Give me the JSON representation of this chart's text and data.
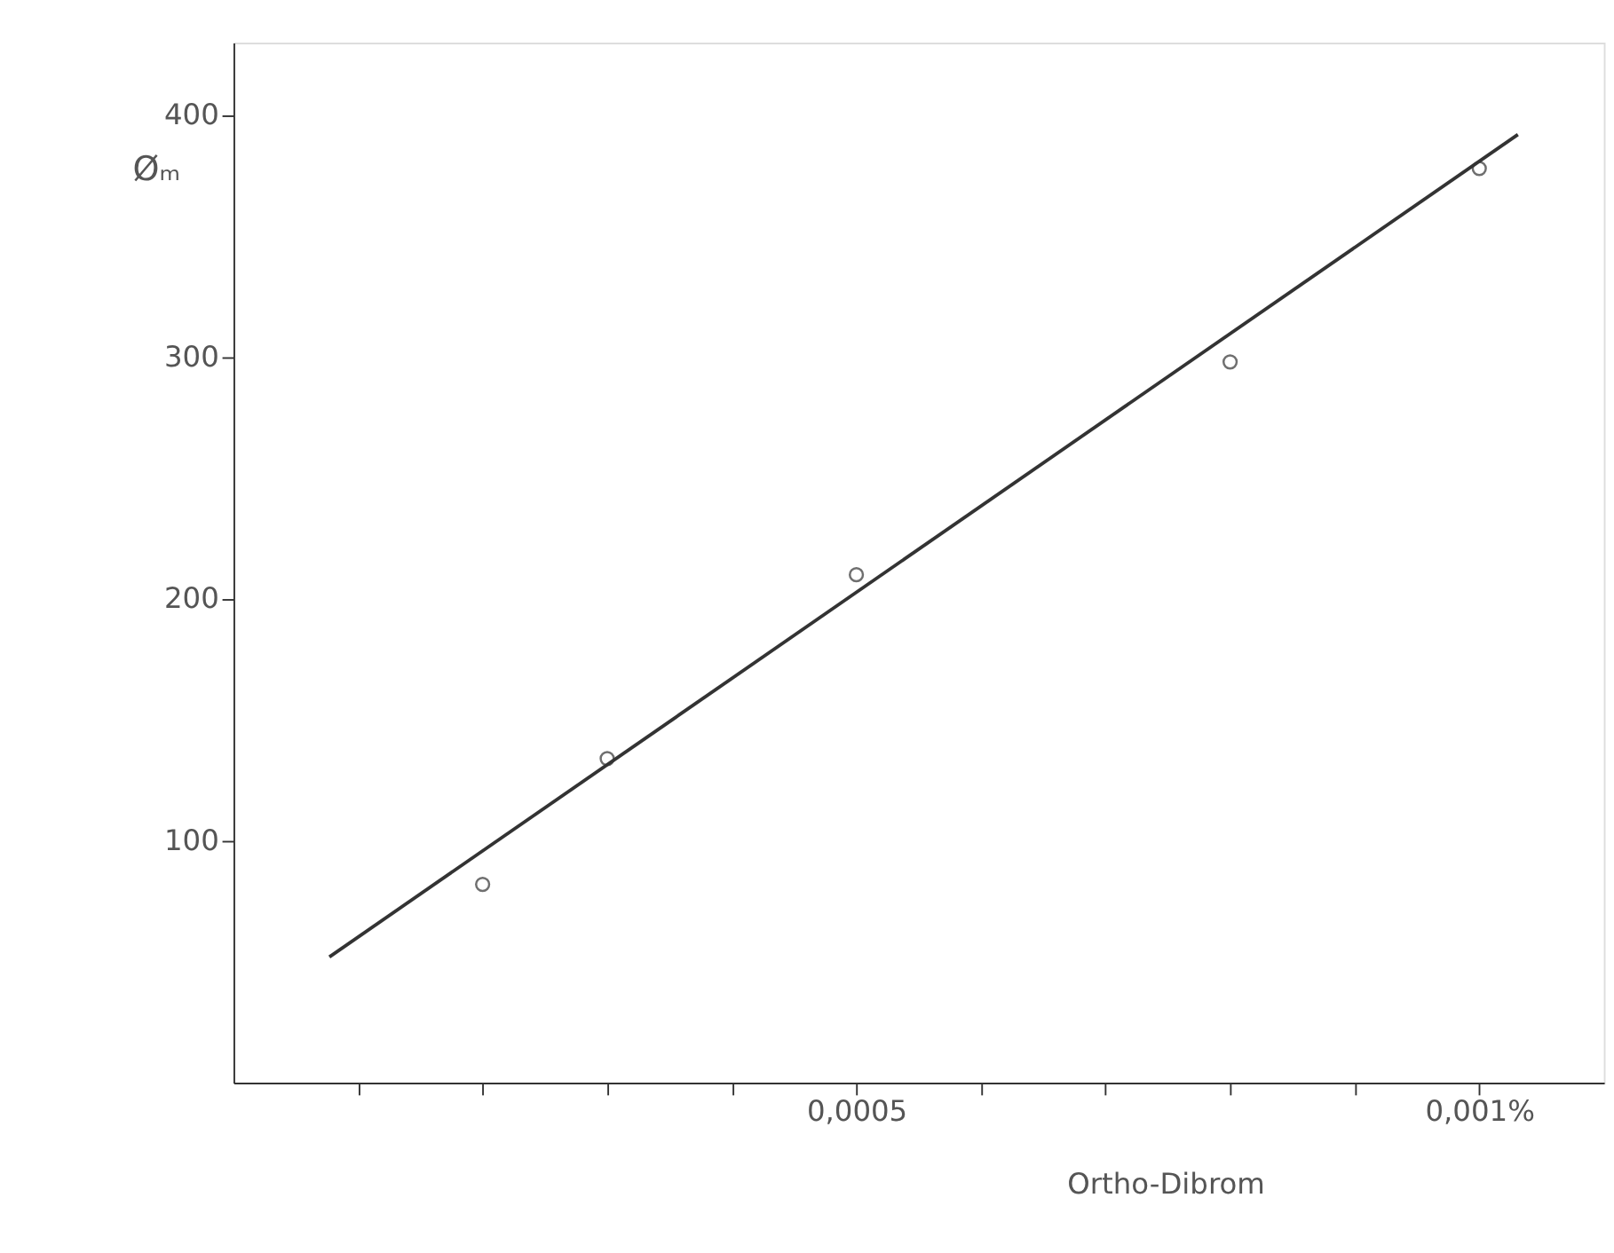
{
  "chart_data": {
    "type": "scatter",
    "xlabel": "Ortho-Dibrom",
    "ylabel": "Øₘ",
    "xlim": [
      0,
      0.0011
    ],
    "ylim": [
      0,
      430
    ],
    "xticks": [
      {
        "value": 0.0001,
        "label": null
      },
      {
        "value": 0.0002,
        "label": null
      },
      {
        "value": 0.0003,
        "label": null
      },
      {
        "value": 0.0004,
        "label": null
      },
      {
        "value": 0.0005,
        "label": "0,0005"
      },
      {
        "value": 0.0006,
        "label": null
      },
      {
        "value": 0.0007,
        "label": null
      },
      {
        "value": 0.0008,
        "label": null
      },
      {
        "value": 0.0009,
        "label": null
      },
      {
        "value": 0.001,
        "label": "0,001%"
      }
    ],
    "yticks": [
      100,
      200,
      300,
      400
    ],
    "grid": false,
    "marker": "circle",
    "series": [
      {
        "color": "#333333",
        "x": [
          0.0002,
          0.0003,
          0.0005,
          0.0008,
          0.001
        ],
        "values": [
          82,
          134,
          210,
          298,
          378
        ]
      },
      {
        "type": "line",
        "color": "#333333",
        "line_style": "solid",
        "marker": "none",
        "x": [
          7.7e-05,
          0.001031
        ],
        "values": [
          52,
          392
        ]
      }
    ]
  }
}
